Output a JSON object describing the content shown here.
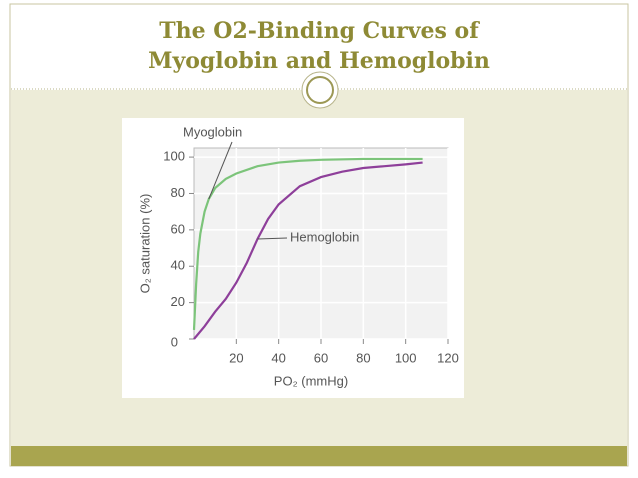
{
  "chart_data": {
    "type": "line",
    "title": "The O2-Binding Curves of Myoglobin and Hemoglobin",
    "y_label": "O₂ saturation (%)",
    "x_label": "PO₂ (mmHg)",
    "xlim": [
      0,
      120
    ],
    "xticks": [
      20,
      40,
      60,
      80,
      100,
      120
    ],
    "ylim": [
      0,
      105
    ],
    "yticks": [
      0,
      20,
      40,
      60,
      80,
      100
    ],
    "grid": true,
    "series": [
      {
        "name": "Myoglobin",
        "color": "#7cc47a",
        "x": [
          0,
          1,
          2,
          3,
          5,
          7,
          10,
          15,
          20,
          30,
          40,
          50,
          60,
          80,
          100,
          108
        ],
        "values": [
          5,
          30,
          48,
          58,
          70,
          77,
          83,
          88,
          91,
          95,
          97,
          98,
          98.5,
          99,
          99,
          99
        ]
      },
      {
        "name": "Hemoglobin",
        "color": "#8e3f9a",
        "x": [
          0,
          5,
          10,
          15,
          20,
          25,
          30,
          35,
          40,
          50,
          60,
          70,
          80,
          90,
          100,
          108
        ],
        "values": [
          0,
          7,
          15,
          22,
          31,
          42,
          55,
          66,
          74,
          84,
          89,
          92,
          94,
          95,
          96,
          97
        ]
      }
    ]
  }
}
